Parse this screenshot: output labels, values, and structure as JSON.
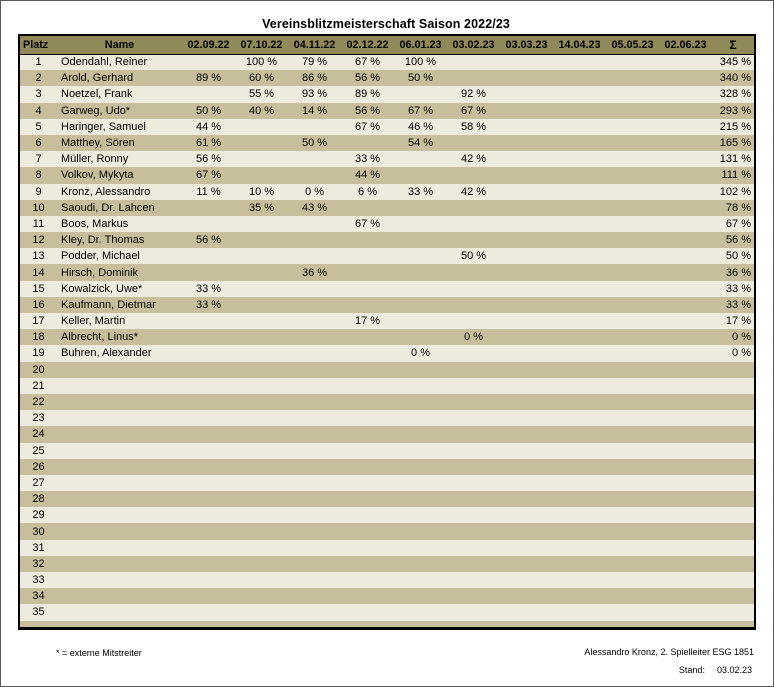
{
  "title": "Vereinsblitzmeisterschaft Saison 2022/23",
  "colors": {
    "header_bg": "#8f8a57",
    "row_odd": "#edebde",
    "row_even": "#c7bf9b",
    "border": "#000000",
    "text": "#000000"
  },
  "table": {
    "headers": {
      "platz": "Platz",
      "name": "Name",
      "dates": [
        "02.09.22",
        "07.10.22",
        "04.11.22",
        "02.12.22",
        "06.01.23",
        "03.02.23",
        "03.03.23",
        "14.04.23",
        "05.05.23",
        "02.06.23"
      ],
      "sum": "Σ"
    },
    "rows": [
      {
        "platz": "1",
        "name": "Odendahl, Reiner",
        "values": [
          "",
          "100 %",
          "79 %",
          "67 %",
          "100 %",
          "",
          "",
          "",
          "",
          ""
        ],
        "sum": "345 %"
      },
      {
        "platz": "2",
        "name": "Arold, Gerhard",
        "values": [
          "89 %",
          "60 %",
          "86 %",
          "56 %",
          "50 %",
          "",
          "",
          "",
          "",
          ""
        ],
        "sum": "340 %"
      },
      {
        "platz": "3",
        "name": "Noetzel, Frank",
        "values": [
          "",
          "55 %",
          "93 %",
          "89 %",
          "",
          "92 %",
          "",
          "",
          "",
          ""
        ],
        "sum": "328 %"
      },
      {
        "platz": "4",
        "name": "Garweg, Udo*",
        "values": [
          "50 %",
          "40 %",
          "14 %",
          "56 %",
          "67 %",
          "67 %",
          "",
          "",
          "",
          ""
        ],
        "sum": "293 %"
      },
      {
        "platz": "5",
        "name": "Haringer, Samuel",
        "values": [
          "44 %",
          "",
          "",
          "67 %",
          "46 %",
          "58 %",
          "",
          "",
          "",
          ""
        ],
        "sum": "215 %"
      },
      {
        "platz": "6",
        "name": "Matthey, Sören",
        "values": [
          "61 %",
          "",
          "50 %",
          "",
          "54 %",
          "",
          "",
          "",
          "",
          ""
        ],
        "sum": "165 %"
      },
      {
        "platz": "7",
        "name": "Müller, Ronny",
        "values": [
          "56 %",
          "",
          "",
          "33 %",
          "",
          "42 %",
          "",
          "",
          "",
          ""
        ],
        "sum": "131 %"
      },
      {
        "platz": "8",
        "name": "Volkov, Mykyta",
        "values": [
          "67 %",
          "",
          "",
          "44 %",
          "",
          "",
          "",
          "",
          "",
          ""
        ],
        "sum": "111 %"
      },
      {
        "platz": "9",
        "name": "Kronz, Alessandro",
        "values": [
          "11 %",
          "10 %",
          "0 %",
          "6 %",
          "33 %",
          "42 %",
          "",
          "",
          "",
          ""
        ],
        "sum": "102 %"
      },
      {
        "platz": "10",
        "name": "Saoudi, Dr. Lahcen",
        "values": [
          "",
          "35 %",
          "43 %",
          "",
          "",
          "",
          "",
          "",
          "",
          ""
        ],
        "sum": "78 %"
      },
      {
        "platz": "11",
        "name": "Boos, Markus",
        "values": [
          "",
          "",
          "",
          "67 %",
          "",
          "",
          "",
          "",
          "",
          ""
        ],
        "sum": "67 %"
      },
      {
        "platz": "12",
        "name": "Kley, Dr. Thomas",
        "values": [
          "56 %",
          "",
          "",
          "",
          "",
          "",
          "",
          "",
          "",
          ""
        ],
        "sum": "56 %"
      },
      {
        "platz": "13",
        "name": "Podder, Michael",
        "values": [
          "",
          "",
          "",
          "",
          "",
          "50 %",
          "",
          "",
          "",
          ""
        ],
        "sum": "50 %"
      },
      {
        "platz": "14",
        "name": "Hirsch, Dominik",
        "values": [
          "",
          "",
          "36 %",
          "",
          "",
          "",
          "",
          "",
          "",
          ""
        ],
        "sum": "36 %"
      },
      {
        "platz": "15",
        "name": "Kowalzick, Uwe*",
        "values": [
          "33 %",
          "",
          "",
          "",
          "",
          "",
          "",
          "",
          "",
          ""
        ],
        "sum": "33 %"
      },
      {
        "platz": "16",
        "name": "Kaufmann, Dietmar",
        "values": [
          "33 %",
          "",
          "",
          "",
          "",
          "",
          "",
          "",
          "",
          ""
        ],
        "sum": "33 %"
      },
      {
        "platz": "17",
        "name": "Keller, Martin",
        "values": [
          "",
          "",
          "",
          "17 %",
          "",
          "",
          "",
          "",
          "",
          ""
        ],
        "sum": "17 %"
      },
      {
        "platz": "18",
        "name": "Albrecht, Linus*",
        "values": [
          "",
          "",
          "",
          "",
          "",
          "0 %",
          "",
          "",
          "",
          ""
        ],
        "sum": "0 %"
      },
      {
        "platz": "19",
        "name": "Buhren, Alexander",
        "values": [
          "",
          "",
          "",
          "",
          "0 %",
          "",
          "",
          "",
          "",
          ""
        ],
        "sum": "0 %"
      }
    ],
    "empty_row_numbers": [
      "20",
      "21",
      "22",
      "23",
      "24",
      "25",
      "26",
      "27",
      "28",
      "29",
      "30",
      "31",
      "32",
      "33",
      "34",
      "35"
    ]
  },
  "footer": {
    "legend": "* = externe Mitstreiter",
    "credit": "Alessandro Kronz, 2. Spielleiter ESG 1851",
    "stand_label": "Stand:",
    "stand_value": "03.02.23"
  }
}
